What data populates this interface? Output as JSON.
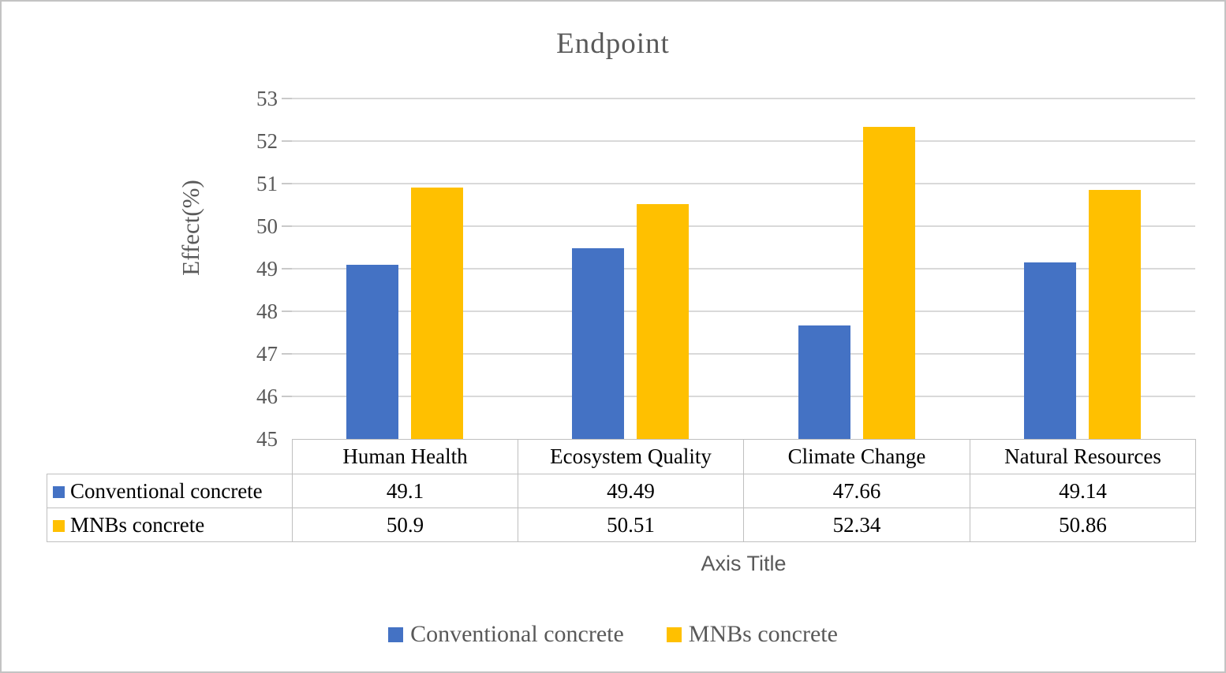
{
  "chart_data": {
    "type": "bar",
    "title": "Endpoint",
    "xlabel": "Axis Title",
    "ylabel": "Effect(%)",
    "ylim": [
      45,
      53
    ],
    "yticks": [
      45,
      46,
      47,
      48,
      49,
      50,
      51,
      52,
      53
    ],
    "grid": true,
    "legend_position": "bottom",
    "data_table_shown": true,
    "categories": [
      "Human Health",
      "Ecosystem Quality",
      "Climate Change",
      "Natural Resources"
    ],
    "series": [
      {
        "name": "Conventional concrete",
        "color": "#4472C4",
        "values": [
          49.1,
          49.49,
          47.66,
          49.14
        ]
      },
      {
        "name": "MNBs concrete",
        "color": "#FFC000",
        "values": [
          50.9,
          50.51,
          52.34,
          50.86
        ]
      }
    ]
  },
  "style_colors": {
    "axis_text": "#595959",
    "table_text": "#000000",
    "gridline": "#d9d9d9",
    "table_border": "#bfbfbf",
    "canvas_border": "#c3c3c3",
    "background": "#ffffff"
  }
}
